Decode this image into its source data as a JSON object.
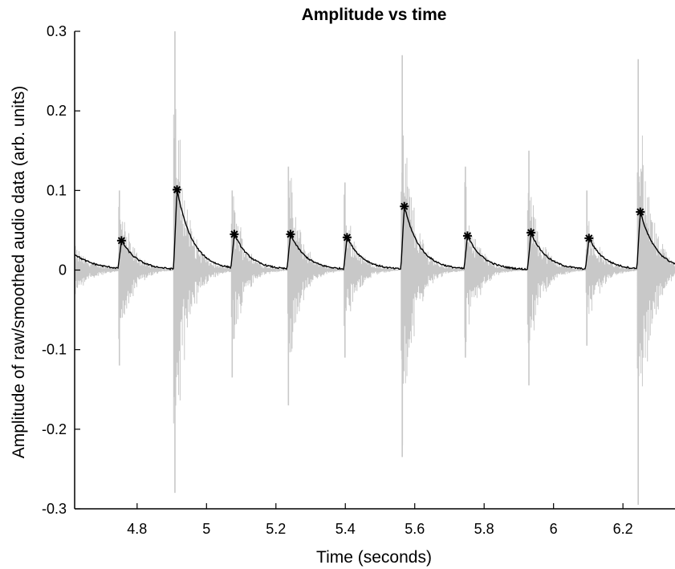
{
  "chart_data": {
    "type": "line",
    "title": "Amplitude vs time",
    "xlabel": "Time (seconds)",
    "ylabel": "Amplitude of raw/smoothed audio data (arb. units)",
    "xlim": [
      4.62,
      6.35
    ],
    "ylim": [
      -0.3,
      0.3
    ],
    "x_ticks": [
      4.8,
      5.0,
      5.2,
      5.4,
      5.6,
      5.8,
      6.0,
      6.2
    ],
    "x_tick_labels": [
      "4.8",
      "5",
      "5.2",
      "5.4",
      "5.6",
      "5.8",
      "6",
      "6.2"
    ],
    "y_ticks": [
      -0.3,
      -0.2,
      -0.1,
      0,
      0.1,
      0.2,
      0.3
    ],
    "y_tick_labels": [
      "-0.3",
      "-0.2",
      "-0.1",
      "0",
      "0.1",
      "0.2",
      "0.3"
    ],
    "grid": false,
    "colors": {
      "raw": "#c8c8c8",
      "smoothed": "#000000",
      "marker": "#000000",
      "axes": "#000000"
    },
    "onsets": [
      {
        "t": 4.745,
        "peak_time": 4.755,
        "peak": 0.037,
        "raw_max": 0.1,
        "raw_min": -0.12
      },
      {
        "t": 4.905,
        "peak_time": 4.915,
        "peak": 0.101,
        "raw_max": 0.3,
        "raw_min": -0.28
      },
      {
        "t": 5.07,
        "peak_time": 5.08,
        "peak": 0.045,
        "raw_max": 0.1,
        "raw_min": -0.135
      },
      {
        "t": 5.232,
        "peak_time": 5.242,
        "peak": 0.045,
        "raw_max": 0.13,
        "raw_min": -0.17
      },
      {
        "t": 5.395,
        "peak_time": 5.405,
        "peak": 0.041,
        "raw_max": 0.11,
        "raw_min": -0.11
      },
      {
        "t": 5.56,
        "peak_time": 5.57,
        "peak": 0.08,
        "raw_max": 0.27,
        "raw_min": -0.235
      },
      {
        "t": 5.742,
        "peak_time": 5.752,
        "peak": 0.043,
        "raw_max": 0.13,
        "raw_min": -0.11
      },
      {
        "t": 5.925,
        "peak_time": 5.935,
        "peak": 0.047,
        "raw_max": 0.15,
        "raw_min": -0.145
      },
      {
        "t": 6.092,
        "peak_time": 6.102,
        "peak": 0.04,
        "raw_max": 0.1,
        "raw_min": -0.095
      },
      {
        "t": 6.24,
        "peak_time": 6.25,
        "peak": 0.073,
        "raw_max": 0.265,
        "raw_min": -0.295
      }
    ],
    "series": [
      {
        "type": "raw_waveform"
      },
      {
        "type": "smoothed_envelope"
      },
      {
        "type": "peak_markers",
        "marker": "asterisk"
      }
    ]
  }
}
